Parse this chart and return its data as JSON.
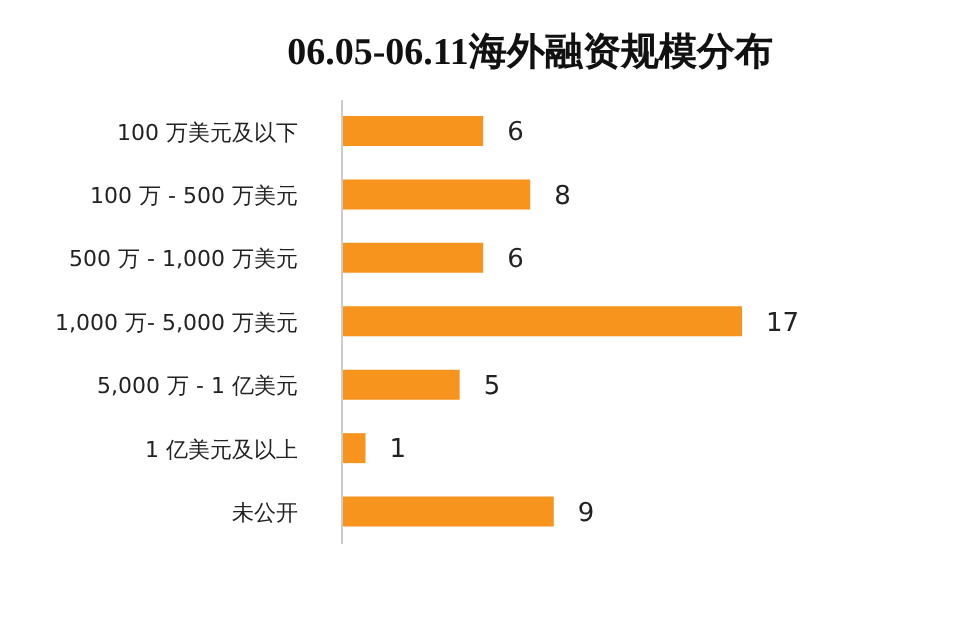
{
  "chart_data": {
    "type": "bar",
    "orientation": "horizontal",
    "title": "06.05-06.11海外融资规模分布",
    "categories": [
      "100 万美元及以下",
      "100 万 - 500 万美元",
      "500 万 - 1,000 万美元",
      "1,000 万- 5,000 万美元",
      "5,000 万 - 1 亿美元",
      "1 亿美元及以上",
      "未公开"
    ],
    "values": [
      6,
      8,
      6,
      17,
      5,
      1,
      9
    ],
    "color": "#f7941d",
    "data_labels": true
  }
}
